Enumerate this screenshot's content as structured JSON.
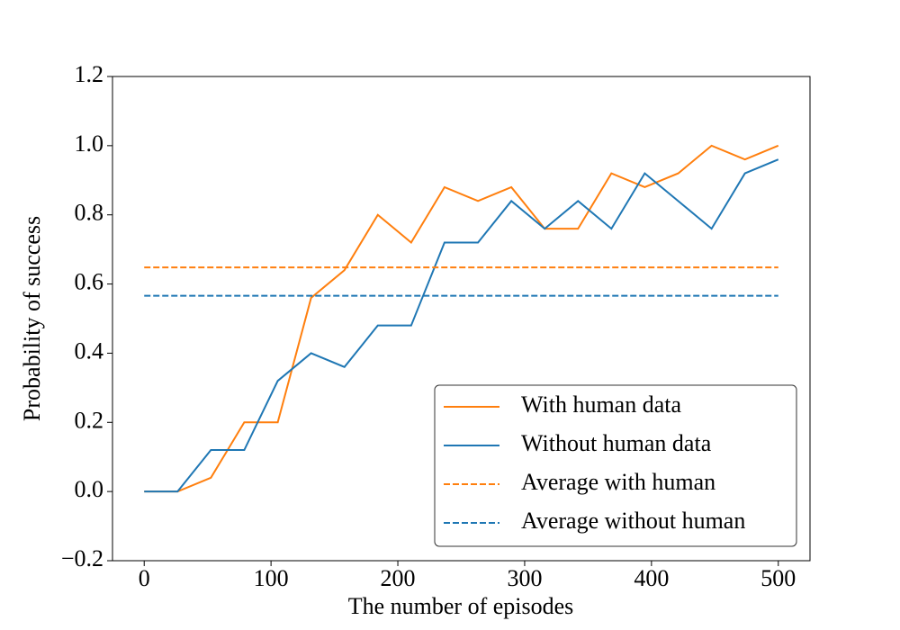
{
  "chart_data": {
    "type": "line",
    "xlabel": "The number of episodes",
    "ylabel": "Probability of success",
    "x": [
      0,
      26.3,
      52.6,
      78.9,
      105.3,
      131.6,
      157.9,
      184.2,
      210.5,
      236.8,
      263.2,
      289.5,
      315.8,
      342.1,
      368.4,
      394.7,
      421.1,
      447.4,
      473.7,
      500
    ],
    "series": [
      {
        "name": "With human data",
        "color": "#ff7f0e",
        "values": [
          0,
          0,
          0.04,
          0.2,
          0.2,
          0.56,
          0.64,
          0.8,
          0.72,
          0.88,
          0.84,
          0.88,
          0.76,
          0.76,
          0.92,
          0.88,
          0.92,
          1.0,
          0.96,
          1.0
        ]
      },
      {
        "name": "Without human data",
        "color": "#1f77b4",
        "values": [
          0,
          0,
          0.12,
          0.12,
          0.32,
          0.4,
          0.36,
          0.48,
          0.48,
          0.72,
          0.72,
          0.84,
          0.76,
          0.84,
          0.76,
          0.92,
          0.84,
          0.76,
          0.92,
          0.96
        ]
      }
    ],
    "hlines": [
      {
        "name": "Average with human",
        "color": "#ff7f0e",
        "value": 0.648,
        "dashed": true
      },
      {
        "name": "Average without human",
        "color": "#1f77b4",
        "value": 0.566,
        "dashed": true
      }
    ],
    "xlim": [
      -25,
      525
    ],
    "xticks": [
      0,
      100,
      200,
      300,
      400,
      500
    ],
    "ylim": [
      -0.2,
      1.2
    ],
    "yticks": [
      {
        "value": -0.2,
        "label": "−0.2"
      },
      {
        "value": 0,
        "label": "0.0"
      },
      {
        "value": 0.2,
        "label": "0.2"
      },
      {
        "value": 0.4,
        "label": "0.4"
      },
      {
        "value": 0.6,
        "label": "0.6"
      },
      {
        "value": 0.8,
        "label": "0.8"
      },
      {
        "value": 1.0,
        "label": "1.0"
      },
      {
        "value": 1.2,
        "label": "1.2"
      }
    ],
    "legend": "lower right",
    "grid": false
  }
}
